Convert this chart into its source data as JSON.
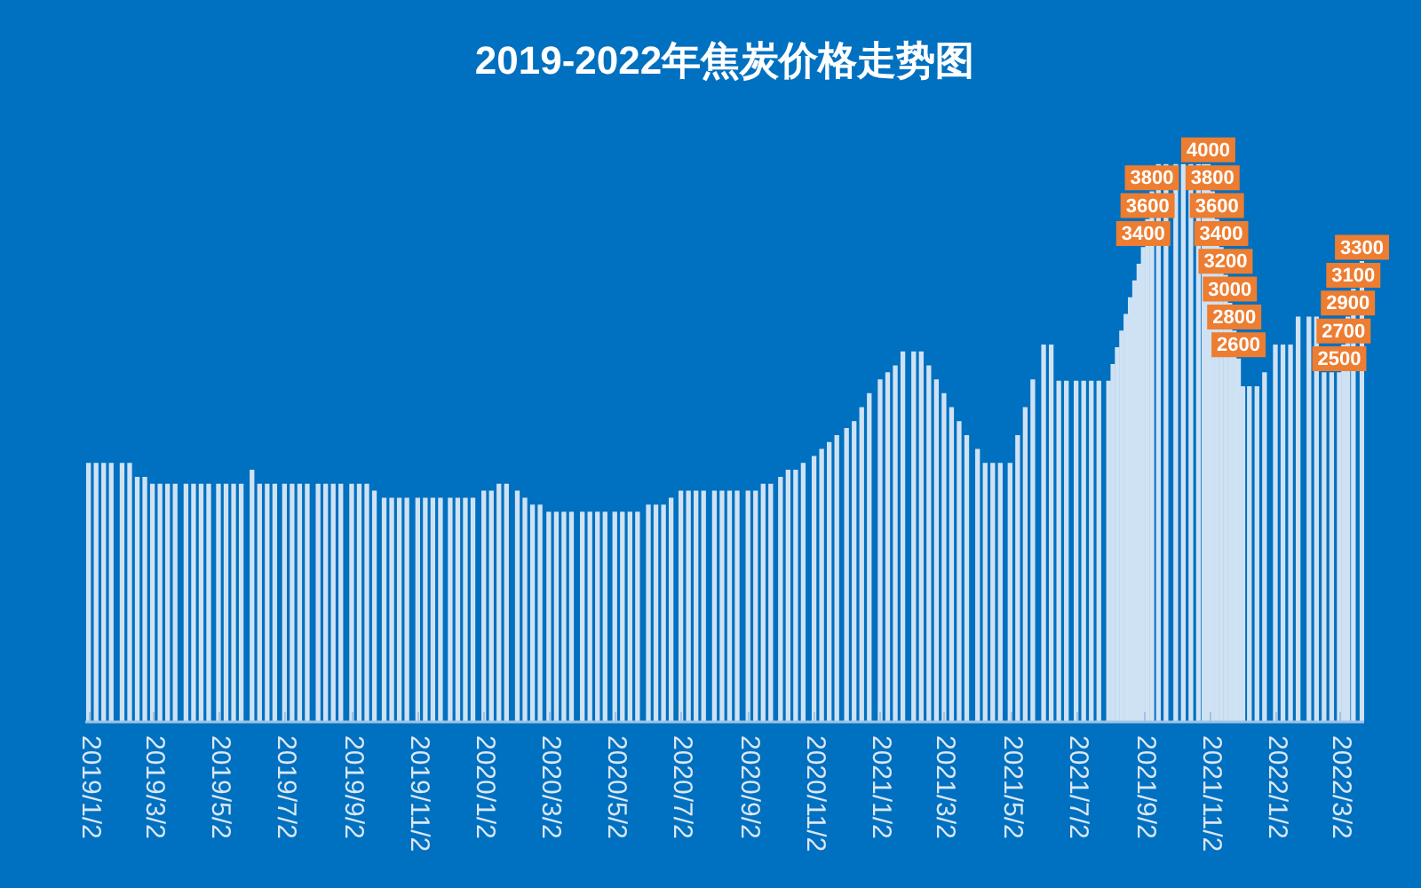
{
  "chart_data": {
    "type": "bar",
    "title": "2019-2022年焦炭价格走势图",
    "x": [
      "2019-01-02",
      "2019-01-09",
      "2019-01-16",
      "2019-01-23",
      "2019-02-02",
      "2019-02-09",
      "2019-02-16",
      "2019-02-23",
      "2019-03-02",
      "2019-03-09",
      "2019-03-16",
      "2019-03-23",
      "2019-04-02",
      "2019-04-09",
      "2019-04-16",
      "2019-04-23",
      "2019-05-02",
      "2019-05-09",
      "2019-05-16",
      "2019-05-23",
      "2019-06-02",
      "2019-06-09",
      "2019-06-16",
      "2019-06-23",
      "2019-07-02",
      "2019-07-09",
      "2019-07-16",
      "2019-07-23",
      "2019-08-02",
      "2019-08-09",
      "2019-08-16",
      "2019-08-23",
      "2019-09-02",
      "2019-09-09",
      "2019-09-16",
      "2019-09-23",
      "2019-10-02",
      "2019-10-09",
      "2019-10-16",
      "2019-10-23",
      "2019-11-02",
      "2019-11-09",
      "2019-11-16",
      "2019-11-23",
      "2019-12-02",
      "2019-12-09",
      "2019-12-16",
      "2019-12-23",
      "2020-01-02",
      "2020-01-09",
      "2020-01-16",
      "2020-01-23",
      "2020-02-02",
      "2020-02-09",
      "2020-02-16",
      "2020-02-23",
      "2020-03-02",
      "2020-03-09",
      "2020-03-16",
      "2020-03-23",
      "2020-04-02",
      "2020-04-09",
      "2020-04-16",
      "2020-04-23",
      "2020-05-02",
      "2020-05-09",
      "2020-05-16",
      "2020-05-23",
      "2020-06-02",
      "2020-06-09",
      "2020-06-16",
      "2020-06-23",
      "2020-07-02",
      "2020-07-09",
      "2020-07-16",
      "2020-07-23",
      "2020-08-02",
      "2020-08-09",
      "2020-08-16",
      "2020-08-23",
      "2020-09-02",
      "2020-09-09",
      "2020-09-16",
      "2020-09-23",
      "2020-10-02",
      "2020-10-09",
      "2020-10-16",
      "2020-10-23",
      "2020-11-02",
      "2020-11-09",
      "2020-11-16",
      "2020-11-23",
      "2020-12-02",
      "2020-12-09",
      "2020-12-16",
      "2020-12-23",
      "2021-01-02",
      "2021-01-09",
      "2021-01-16",
      "2021-01-23",
      "2021-02-02",
      "2021-02-09",
      "2021-02-16",
      "2021-02-23",
      "2021-03-02",
      "2021-03-09",
      "2021-03-16",
      "2021-03-23",
      "2021-04-02",
      "2021-04-09",
      "2021-04-16",
      "2021-04-23",
      "2021-05-02",
      "2021-05-09",
      "2021-05-16",
      "2021-05-23",
      "2021-06-02",
      "2021-06-09",
      "2021-06-16",
      "2021-06-23",
      "2021-07-02",
      "2021-07-09",
      "2021-07-16",
      "2021-07-23",
      "2021-08-01",
      "2021-08-05",
      "2021-08-09",
      "2021-08-13",
      "2021-08-17",
      "2021-08-21",
      "2021-08-25",
      "2021-08-29",
      "2021-09-02",
      "2021-09-06",
      "2021-09-10",
      "2021-09-16",
      "2021-09-23",
      "2021-10-02",
      "2021-10-09",
      "2021-10-16",
      "2021-10-23",
      "2021-10-28",
      "2021-11-01",
      "2021-11-05",
      "2021-11-09",
      "2021-11-13",
      "2021-11-17",
      "2021-11-21",
      "2021-11-25",
      "2021-11-29",
      "2021-12-03",
      "2021-12-09",
      "2021-12-16",
      "2021-12-23",
      "2022-01-02",
      "2022-01-09",
      "2022-01-16",
      "2022-01-23",
      "2022-02-02",
      "2022-02-09",
      "2022-02-16",
      "2022-02-23",
      "2022-03-02",
      "2022-03-06",
      "2022-03-10",
      "2022-03-15",
      "2022-03-23"
    ],
    "values": [
      1850,
      1850,
      1850,
      1850,
      1850,
      1850,
      1750,
      1750,
      1700,
      1700,
      1700,
      1700,
      1700,
      1700,
      1700,
      1700,
      1700,
      1700,
      1700,
      1700,
      1800,
      1700,
      1700,
      1700,
      1700,
      1700,
      1700,
      1700,
      1700,
      1700,
      1700,
      1700,
      1700,
      1700,
      1700,
      1650,
      1600,
      1600,
      1600,
      1600,
      1600,
      1600,
      1600,
      1600,
      1600,
      1600,
      1600,
      1600,
      1650,
      1650,
      1700,
      1700,
      1650,
      1600,
      1550,
      1550,
      1500,
      1500,
      1500,
      1500,
      1500,
      1500,
      1500,
      1500,
      1500,
      1500,
      1500,
      1500,
      1550,
      1550,
      1550,
      1600,
      1650,
      1650,
      1650,
      1650,
      1650,
      1650,
      1650,
      1650,
      1650,
      1650,
      1700,
      1700,
      1750,
      1800,
      1800,
      1850,
      1900,
      1950,
      2000,
      2050,
      2100,
      2150,
      2250,
      2350,
      2450,
      2500,
      2550,
      2650,
      2650,
      2650,
      2550,
      2450,
      2350,
      2250,
      2150,
      2050,
      1950,
      1850,
      1850,
      1850,
      1850,
      2050,
      2250,
      2450,
      2700,
      2700,
      2440,
      2440,
      2440,
      2440,
      2440,
      2440,
      2440,
      2560,
      2680,
      2800,
      2920,
      3040,
      3160,
      3280,
      3400,
      3600,
      3800,
      4000,
      4000,
      4000,
      4000,
      4000,
      4000,
      4000,
      4000,
      3800,
      3600,
      3400,
      3200,
      3000,
      2800,
      2600,
      2400,
      2400,
      2400,
      2500,
      2700,
      2700,
      2700,
      2900,
      2900,
      2900,
      2500,
      2500,
      2500,
      2700,
      2900,
      3100,
      3300
    ],
    "value_labels": [
      null,
      null,
      null,
      null,
      null,
      null,
      null,
      null,
      null,
      null,
      null,
      null,
      null,
      null,
      null,
      null,
      null,
      null,
      null,
      null,
      null,
      null,
      null,
      null,
      null,
      null,
      null,
      null,
      null,
      null,
      null,
      null,
      null,
      null,
      null,
      null,
      null,
      null,
      null,
      null,
      null,
      null,
      null,
      null,
      null,
      null,
      null,
      null,
      null,
      null,
      null,
      null,
      null,
      null,
      null,
      null,
      null,
      null,
      null,
      null,
      null,
      null,
      null,
      null,
      null,
      null,
      null,
      null,
      null,
      null,
      null,
      null,
      null,
      null,
      null,
      null,
      null,
      null,
      null,
      null,
      null,
      null,
      null,
      null,
      null,
      null,
      null,
      null,
      null,
      null,
      null,
      null,
      null,
      null,
      null,
      null,
      null,
      null,
      null,
      null,
      null,
      null,
      null,
      null,
      null,
      null,
      null,
      null,
      null,
      null,
      null,
      null,
      null,
      null,
      null,
      null,
      null,
      null,
      null,
      null,
      null,
      null,
      null,
      null,
      null,
      null,
      null,
      null,
      null,
      null,
      null,
      null,
      "3400",
      "3600",
      "3800",
      null,
      null,
      null,
      null,
      null,
      null,
      null,
      "4000",
      "3800",
      "3600",
      "3400",
      "3200",
      "3000",
      "2800",
      "2600",
      null,
      null,
      null,
      null,
      null,
      null,
      null,
      null,
      null,
      null,
      null,
      null,
      "2500",
      "2700",
      "2900",
      "3100",
      "3300"
    ],
    "color": "#cfe2f3",
    "xlim": [
      "2018-12-30",
      "2022-03-25"
    ],
    "xticks": [
      {
        "value": "2019-01-02",
        "label": "2019/1/2"
      },
      {
        "value": "2019-03-02",
        "label": "2019/3/2"
      },
      {
        "value": "2019-05-02",
        "label": "2019/5/2"
      },
      {
        "value": "2019-07-02",
        "label": "2019/7/2"
      },
      {
        "value": "2019-09-02",
        "label": "2019/9/2"
      },
      {
        "value": "2019-11-02",
        "label": "2019/11/2"
      },
      {
        "value": "2020-01-02",
        "label": "2020/1/2"
      },
      {
        "value": "2020-03-02",
        "label": "2020/3/2"
      },
      {
        "value": "2020-05-02",
        "label": "2020/5/2"
      },
      {
        "value": "2020-07-02",
        "label": "2020/7/2"
      },
      {
        "value": "2020-09-02",
        "label": "2020/9/2"
      },
      {
        "value": "2020-11-02",
        "label": "2020/11/2"
      },
      {
        "value": "2021-01-02",
        "label": "2021/1/2"
      },
      {
        "value": "2021-03-02",
        "label": "2021/3/2"
      },
      {
        "value": "2021-05-02",
        "label": "2021/5/2"
      },
      {
        "value": "2021-07-02",
        "label": "2021/7/2"
      },
      {
        "value": "2021-09-02",
        "label": "2021/9/2"
      },
      {
        "value": "2021-11-02",
        "label": "2021/11/2"
      },
      {
        "value": "2022-01-02",
        "label": "2022/1/2"
      },
      {
        "value": "2022-03-02",
        "label": "2022/3/2"
      }
    ],
    "tick_labels": "x"
  }
}
